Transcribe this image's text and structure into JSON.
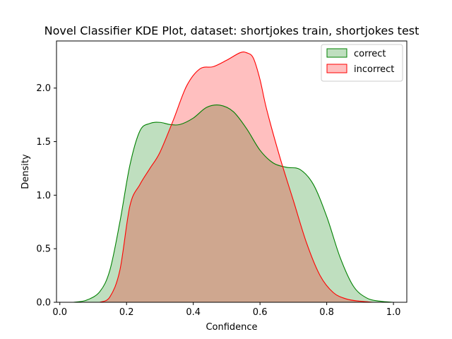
{
  "chart_data": {
    "type": "area",
    "title": "Novel Classifier KDE Plot, dataset: shortjokes train, shortjokes test",
    "xlabel": "Confidence",
    "ylabel": "Density",
    "xlim": [
      -0.01,
      1.04
    ],
    "ylim": [
      0,
      2.44
    ],
    "xticks": [
      0.0,
      0.2,
      0.4,
      0.6,
      0.8,
      1.0
    ],
    "xtick_labels": [
      "0.0",
      "0.2",
      "0.4",
      "0.6",
      "0.8",
      "1.0"
    ],
    "yticks": [
      0.0,
      0.5,
      1.0,
      1.5,
      2.0
    ],
    "ytick_labels": [
      "0.0",
      "0.5",
      "1.0",
      "1.5",
      "2.0"
    ],
    "legend_position": "top-right",
    "series": [
      {
        "name": "correct",
        "stroke": "#008000",
        "fill": "#008000",
        "fill_opacity": 0.25,
        "x": [
          0.04,
          0.08,
          0.12,
          0.15,
          0.18,
          0.21,
          0.24,
          0.27,
          0.3,
          0.33,
          0.36,
          0.4,
          0.44,
          0.48,
          0.52,
          0.56,
          0.6,
          0.64,
          0.68,
          0.72,
          0.76,
          0.8,
          0.84,
          0.88,
          0.92,
          0.96,
          1.0
        ],
        "y": [
          0.0,
          0.02,
          0.1,
          0.3,
          0.75,
          1.28,
          1.6,
          1.67,
          1.68,
          1.66,
          1.66,
          1.72,
          1.82,
          1.84,
          1.78,
          1.62,
          1.42,
          1.3,
          1.26,
          1.24,
          1.1,
          0.8,
          0.42,
          0.15,
          0.04,
          0.01,
          0.0
        ]
      },
      {
        "name": "incorrect",
        "stroke": "#ff0000",
        "fill": "#ff0000",
        "fill_opacity": 0.25,
        "x": [
          0.12,
          0.15,
          0.18,
          0.21,
          0.24,
          0.27,
          0.3,
          0.34,
          0.38,
          0.42,
          0.46,
          0.5,
          0.54,
          0.56,
          0.58,
          0.6,
          0.62,
          0.66,
          0.7,
          0.74,
          0.78,
          0.82,
          0.86,
          0.9,
          0.94
        ],
        "y": [
          0.0,
          0.05,
          0.3,
          0.9,
          1.1,
          1.25,
          1.4,
          1.7,
          2.02,
          2.18,
          2.2,
          2.26,
          2.33,
          2.33,
          2.28,
          2.08,
          1.8,
          1.35,
          0.95,
          0.55,
          0.25,
          0.09,
          0.03,
          0.01,
          0.0
        ]
      }
    ]
  }
}
